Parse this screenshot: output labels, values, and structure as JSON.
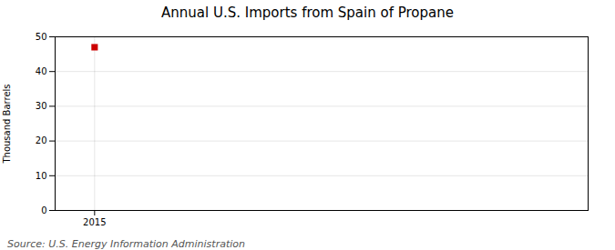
{
  "chart_data": {
    "type": "scatter",
    "title": "Annual U.S. Imports from Spain of Propane",
    "ylabel": "Thousand Barrels",
    "caption": "Source: U.S. Energy Information Administration",
    "x": [
      2015
    ],
    "values": [
      47
    ],
    "color": "#cc0000",
    "marker": "square",
    "xlim": [
      2014.4,
      2022.5
    ],
    "ylim": [
      0,
      50
    ],
    "xticks": [
      2015
    ],
    "yticks": [
      0,
      10,
      20,
      30,
      40,
      50
    ],
    "grid": true
  }
}
